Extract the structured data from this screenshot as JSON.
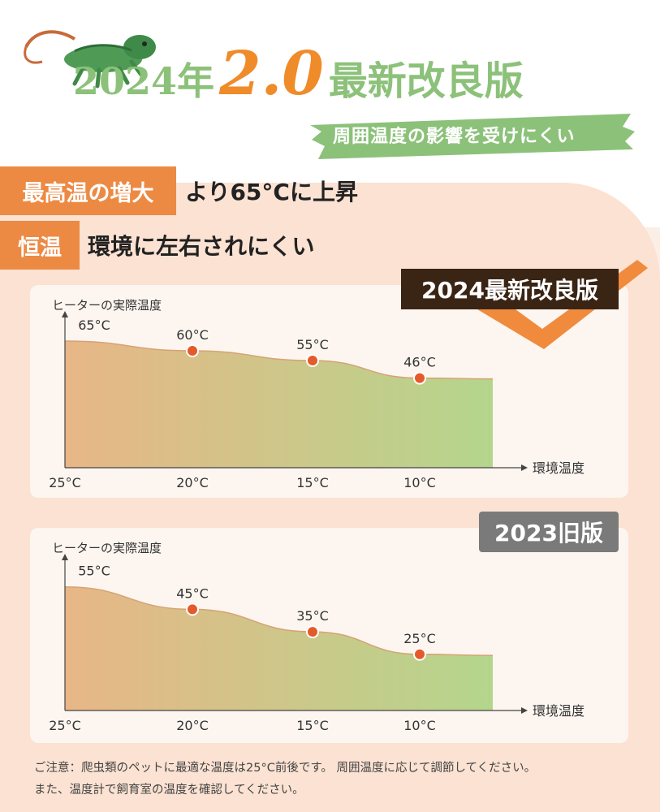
{
  "header": {
    "year": "2024年",
    "version": "2.0",
    "subtitle": "最新改良版",
    "tagline": "周囲温度の影響を受けにくい"
  },
  "features": [
    {
      "tag": "最高温の増大",
      "text": "より65°Cに上昇"
    },
    {
      "tag": "恒温",
      "text": "環境に左右されにくい"
    }
  ],
  "badges": {
    "new": "2024最新改良版",
    "old": "2023旧版"
  },
  "colors": {
    "accent_orange": "#ec8a44",
    "headline_green": "#8cc17a",
    "gradient_start": "#e8b687",
    "gradient_end": "#b4d68c",
    "point": "#e45a2a"
  },
  "chart_data": [
    {
      "type": "area",
      "ylabel": "ヒーターの実際温度",
      "xlabel": "環境温度",
      "categories": [
        "25°C",
        "20°C",
        "15°C",
        "10°C"
      ],
      "values": [
        65,
        60,
        55,
        46
      ],
      "data_labels": [
        "65°C",
        "60°C",
        "55°C",
        "46°C"
      ],
      "ylim": [
        0,
        75
      ],
      "grid": false
    },
    {
      "type": "area",
      "ylabel": "ヒーターの実際温度",
      "xlabel": "環境温度",
      "categories": [
        "25°C",
        "20°C",
        "15°C",
        "10°C"
      ],
      "values": [
        55,
        45,
        35,
        25
      ],
      "data_labels": [
        "55°C",
        "45°C",
        "35°C",
        "25°C"
      ],
      "ylim": [
        0,
        65
      ],
      "grid": false
    }
  ],
  "notice": [
    "ご注意：爬虫類のペットに最適な温度は25°C前後です。 周囲温度に応じて調節してください。",
    "また、温度計で飼育室の温度を確認してください。"
  ]
}
